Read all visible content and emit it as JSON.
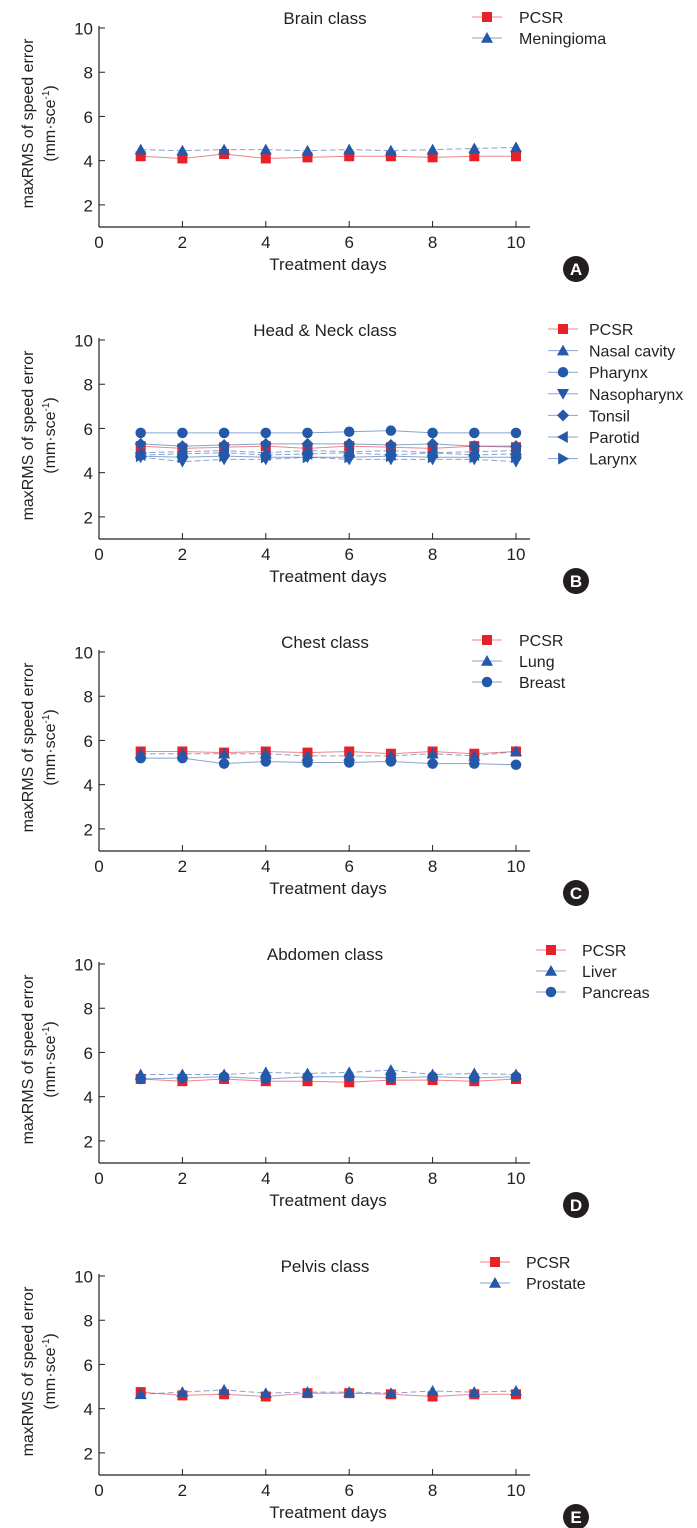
{
  "chart_data": [
    {
      "type": "line",
      "panel_label": "A",
      "title": "Brain class",
      "xlabel": "Treatment days",
      "ylabel": "maxRMS of speed error",
      "yunit_prefix": "(mm·sce",
      "yunit_sup": "-1",
      "yunit_suffix": ")",
      "xlim": [
        0,
        11
      ],
      "ylim": [
        1,
        10
      ],
      "xticks": [
        0,
        2,
        4,
        6,
        8,
        10
      ],
      "yticks": [
        2,
        4,
        6,
        8,
        10
      ],
      "legend_position": "top-right",
      "x": [
        1,
        2,
        3,
        4,
        5,
        6,
        7,
        8,
        9,
        10
      ],
      "series": [
        {
          "name": "PCSR",
          "marker": "square",
          "color": "#e8202a",
          "values": [
            4.2,
            4.1,
            4.3,
            4.1,
            4.15,
            4.2,
            4.2,
            4.15,
            4.2,
            4.2
          ]
        },
        {
          "name": "Meningioma",
          "marker": "triangle-up",
          "color": "#2458a8",
          "values": [
            4.5,
            4.45,
            4.5,
            4.5,
            4.45,
            4.5,
            4.45,
            4.5,
            4.55,
            4.6
          ]
        }
      ]
    },
    {
      "type": "line",
      "panel_label": "B",
      "title": "Head & Neck class",
      "xlabel": "Treatment days",
      "ylabel": "maxRMS of speed error",
      "yunit_prefix": "(mm·sce",
      "yunit_sup": "-1",
      "yunit_suffix": ")",
      "xlim": [
        0,
        11
      ],
      "ylim": [
        1,
        10
      ],
      "xticks": [
        0,
        2,
        4,
        6,
        8,
        10
      ],
      "yticks": [
        2,
        4,
        6,
        8,
        10
      ],
      "legend_position": "right",
      "x": [
        1,
        2,
        3,
        4,
        5,
        6,
        7,
        8,
        9,
        10
      ],
      "series": [
        {
          "name": "PCSR",
          "marker": "square",
          "color": "#e8202a",
          "values": [
            5.2,
            5.1,
            5.15,
            5.2,
            5.1,
            5.2,
            5.15,
            5.1,
            5.2,
            5.15
          ]
        },
        {
          "name": "Nasal cavity",
          "marker": "triangle-up",
          "color": "#2458a8",
          "values": [
            4.9,
            4.95,
            5.0,
            4.9,
            5.0,
            4.95,
            5.0,
            4.9,
            4.95,
            5.0
          ]
        },
        {
          "name": "Pharynx",
          "marker": "circle",
          "color": "#2458a8",
          "values": [
            5.8,
            5.8,
            5.8,
            5.8,
            5.8,
            5.85,
            5.9,
            5.8,
            5.8,
            5.8
          ]
        },
        {
          "name": "Nasopharynx",
          "marker": "triangle-down",
          "color": "#2458a8",
          "values": [
            4.7,
            4.5,
            4.6,
            4.6,
            4.7,
            4.6,
            4.6,
            4.6,
            4.6,
            4.5
          ]
        },
        {
          "name": "Tonsil",
          "marker": "diamond",
          "color": "#2458a8",
          "values": [
            5.3,
            5.2,
            5.25,
            5.3,
            5.3,
            5.3,
            5.25,
            5.3,
            5.2,
            5.2
          ]
        },
        {
          "name": "Parotid",
          "marker": "triangle-left",
          "color": "#2458a8",
          "values": [
            4.8,
            4.85,
            4.9,
            4.8,
            4.85,
            4.9,
            4.8,
            4.9,
            4.8,
            4.85
          ]
        },
        {
          "name": "Larynx",
          "marker": "triangle-right",
          "color": "#2458a8",
          "values": [
            4.75,
            4.7,
            4.75,
            4.7,
            4.7,
            4.7,
            4.75,
            4.7,
            4.7,
            4.7
          ]
        }
      ]
    },
    {
      "type": "line",
      "panel_label": "C",
      "title": "Chest class",
      "xlabel": "Treatment days",
      "ylabel": "maxRMS of speed error",
      "yunit_prefix": "(mm·sce",
      "yunit_sup": "-1",
      "yunit_suffix": ")",
      "xlim": [
        0,
        11
      ],
      "ylim": [
        1,
        10
      ],
      "xticks": [
        0,
        2,
        4,
        6,
        8,
        10
      ],
      "yticks": [
        2,
        4,
        6,
        8,
        10
      ],
      "legend_position": "top-right",
      "x": [
        1,
        2,
        3,
        4,
        5,
        6,
        7,
        8,
        9,
        10
      ],
      "series": [
        {
          "name": "PCSR",
          "marker": "square",
          "color": "#e8202a",
          "values": [
            5.5,
            5.5,
            5.45,
            5.5,
            5.45,
            5.5,
            5.4,
            5.5,
            5.4,
            5.5
          ]
        },
        {
          "name": "Lung",
          "marker": "triangle-up",
          "color": "#2458a8",
          "values": [
            5.4,
            5.4,
            5.4,
            5.4,
            5.3,
            5.3,
            5.3,
            5.4,
            5.3,
            5.5
          ]
        },
        {
          "name": "Breast",
          "marker": "circle",
          "color": "#2458a8",
          "values": [
            5.2,
            5.2,
            4.95,
            5.05,
            5.0,
            5.0,
            5.05,
            4.95,
            4.95,
            4.9
          ]
        }
      ]
    },
    {
      "type": "line",
      "panel_label": "D",
      "title": "Abdomen class",
      "xlabel": "Treatment days",
      "ylabel": "maxRMS of speed error",
      "yunit_prefix": "(mm·sce",
      "yunit_sup": "-1",
      "yunit_suffix": ")",
      "xlim": [
        0,
        11
      ],
      "ylim": [
        1,
        10
      ],
      "xticks": [
        0,
        2,
        4,
        6,
        8,
        10
      ],
      "yticks": [
        2,
        4,
        6,
        8,
        10
      ],
      "legend_position": "top-right",
      "x": [
        1,
        2,
        3,
        4,
        5,
        6,
        7,
        8,
        9,
        10
      ],
      "series": [
        {
          "name": "PCSR",
          "marker": "square",
          "color": "#e8202a",
          "values": [
            4.8,
            4.7,
            4.8,
            4.7,
            4.7,
            4.65,
            4.75,
            4.75,
            4.7,
            4.8
          ]
        },
        {
          "name": "Liver",
          "marker": "triangle-up",
          "color": "#2458a8",
          "values": [
            5.0,
            5.0,
            5.0,
            5.1,
            5.05,
            5.1,
            5.2,
            5.0,
            5.05,
            5.0
          ]
        },
        {
          "name": "Pancreas",
          "marker": "circle",
          "color": "#2458a8",
          "values": [
            4.8,
            4.85,
            4.9,
            4.8,
            4.9,
            4.9,
            4.85,
            4.9,
            4.85,
            4.9
          ]
        }
      ]
    },
    {
      "type": "line",
      "panel_label": "E",
      "title": "Pelvis class",
      "xlabel": "Treatment days",
      "ylabel": "maxRMS of speed error",
      "yunit_prefix": "(mm·sce",
      "yunit_sup": "-1",
      "yunit_suffix": ")",
      "xlim": [
        0,
        11
      ],
      "ylim": [
        1,
        10
      ],
      "xticks": [
        0,
        2,
        4,
        6,
        8,
        10
      ],
      "yticks": [
        2,
        4,
        6,
        8,
        10
      ],
      "legend_position": "top-right",
      "x": [
        1,
        2,
        3,
        4,
        5,
        6,
        7,
        8,
        9,
        10
      ],
      "series": [
        {
          "name": "PCSR",
          "marker": "square",
          "color": "#e8202a",
          "values": [
            4.75,
            4.6,
            4.65,
            4.55,
            4.7,
            4.7,
            4.65,
            4.55,
            4.65,
            4.65
          ]
        },
        {
          "name": "Prostate",
          "marker": "triangle-up",
          "color": "#2458a8",
          "values": [
            4.65,
            4.75,
            4.85,
            4.7,
            4.75,
            4.75,
            4.7,
            4.8,
            4.75,
            4.8
          ]
        }
      ]
    }
  ]
}
